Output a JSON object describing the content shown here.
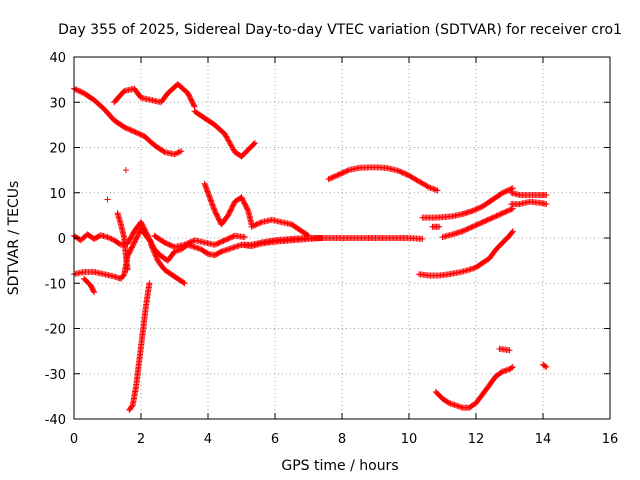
{
  "chart_data": {
    "type": "scatter",
    "title": "Day 355 of 2025, Sidereal Day-to-day VTEC variation (SDTVAR) for receiver cro1",
    "xlabel": "GPS time / hours",
    "ylabel": "SDTVAR / TECUs",
    "xlim": [
      0,
      16
    ],
    "ylim": [
      -40,
      40
    ],
    "xticks": [
      "0",
      "2",
      "4",
      "6",
      "8",
      "10",
      "12",
      "14",
      "16"
    ],
    "yticks": [
      "40",
      "30",
      "20",
      "10",
      "0",
      "-10",
      "-20",
      "-30",
      "-40"
    ],
    "grid": true,
    "marker": "plus",
    "color": "#ff0000",
    "tracks": [
      [
        [
          0.0,
          33
        ],
        [
          0.3,
          32
        ],
        [
          0.6,
          30.5
        ],
        [
          0.9,
          28.5
        ],
        [
          1.2,
          26
        ],
        [
          1.5,
          24.5
        ],
        [
          1.8,
          23.5
        ],
        [
          2.1,
          22.5
        ],
        [
          2.4,
          20.5
        ],
        [
          2.7,
          19
        ],
        [
          3.0,
          18.5
        ],
        [
          3.2,
          19.2
        ]
      ],
      [
        [
          1.2,
          30
        ],
        [
          1.5,
          32.5
        ],
        [
          1.8,
          33
        ],
        [
          2.0,
          31
        ],
        [
          2.3,
          30.5
        ],
        [
          2.6,
          30
        ],
        [
          2.8,
          32
        ],
        [
          3.1,
          34
        ],
        [
          3.4,
          32
        ],
        [
          3.6,
          29
        ]
      ],
      [
        [
          3.6,
          28
        ],
        [
          3.9,
          26.5
        ],
        [
          4.2,
          25
        ],
        [
          4.5,
          23
        ],
        [
          4.8,
          19
        ],
        [
          5.0,
          18
        ],
        [
          5.2,
          19.5
        ],
        [
          5.4,
          21
        ]
      ],
      [
        [
          0.0,
          0.5
        ],
        [
          0.2,
          -0.5
        ],
        [
          0.4,
          0.8
        ],
        [
          0.6,
          -0.2
        ],
        [
          0.8,
          0.6
        ],
        [
          1.0,
          0.2
        ],
        [
          1.2,
          -0.5
        ],
        [
          1.4,
          -1.5
        ],
        [
          1.6,
          -1.2
        ],
        [
          1.8,
          1.5
        ],
        [
          2.0,
          3.5
        ],
        [
          2.2,
          0.5
        ],
        [
          2.4,
          -2.5
        ],
        [
          2.6,
          -4
        ],
        [
          2.8,
          -5
        ],
        [
          3.0,
          -3
        ],
        [
          3.2,
          -2.5
        ],
        [
          3.4,
          -1.5
        ],
        [
          3.6,
          -2
        ],
        [
          3.8,
          -2.5
        ],
        [
          4.0,
          -3.5
        ],
        [
          4.2,
          -3.8
        ],
        [
          4.4,
          -3
        ],
        [
          4.6,
          -2.5
        ],
        [
          4.8,
          -2
        ],
        [
          5.0,
          -1.5
        ],
        [
          5.3,
          -1.5
        ],
        [
          5.6,
          -1
        ],
        [
          6.0,
          -0.5
        ],
        [
          6.5,
          -0.2
        ],
        [
          7.0,
          0
        ],
        [
          7.5,
          0
        ],
        [
          8.0,
          0
        ],
        [
          8.5,
          0
        ],
        [
          9.0,
          0
        ],
        [
          9.5,
          0
        ],
        [
          10.0,
          0
        ],
        [
          10.4,
          -0.2
        ]
      ],
      [
        [
          0.0,
          -8
        ],
        [
          0.3,
          -7.5
        ],
        [
          0.6,
          -7.5
        ],
        [
          0.9,
          -8
        ],
        [
          1.2,
          -8.5
        ],
        [
          1.4,
          -9
        ],
        [
          1.5,
          -8
        ],
        [
          1.6,
          -4
        ],
        [
          1.8,
          -1
        ],
        [
          2.0,
          2
        ],
        [
          2.2,
          0
        ],
        [
          2.3,
          -1
        ]
      ],
      [
        [
          2.3,
          -1.5
        ],
        [
          2.5,
          -5
        ],
        [
          2.7,
          -7
        ],
        [
          2.9,
          -8
        ],
        [
          3.1,
          -9
        ],
        [
          3.3,
          -10
        ]
      ],
      [
        [
          2.4,
          0.5
        ],
        [
          2.7,
          -1
        ],
        [
          3.0,
          -2
        ],
        [
          3.3,
          -1.5
        ],
        [
          3.6,
          -0.5
        ],
        [
          3.9,
          -1
        ],
        [
          4.2,
          -1.5
        ],
        [
          4.5,
          -0.5
        ],
        [
          4.8,
          0.5
        ],
        [
          5.1,
          0.2
        ]
      ],
      [
        [
          0.3,
          -9
        ],
        [
          0.5,
          -10.5
        ],
        [
          0.6,
          -12
        ]
      ],
      [
        [
          1.65,
          -38
        ],
        [
          1.75,
          -37
        ],
        [
          1.85,
          -33
        ],
        [
          1.95,
          -27
        ],
        [
          2.05,
          -21
        ],
        [
          2.15,
          -15
        ],
        [
          2.25,
          -10
        ]
      ],
      [
        [
          1.3,
          5.5
        ],
        [
          1.4,
          3
        ],
        [
          1.5,
          0
        ],
        [
          1.55,
          -4
        ],
        [
          1.6,
          -7
        ]
      ],
      [
        [
          3.9,
          12
        ],
        [
          4.0,
          10
        ],
        [
          4.1,
          8
        ],
        [
          4.2,
          6
        ],
        [
          4.4,
          3
        ],
        [
          4.6,
          5
        ],
        [
          4.8,
          8
        ],
        [
          5.0,
          9
        ],
        [
          5.2,
          6
        ],
        [
          5.3,
          3
        ]
      ],
      [
        [
          5.3,
          2.5
        ],
        [
          5.6,
          3.5
        ],
        [
          5.9,
          4
        ],
        [
          6.2,
          3.5
        ],
        [
          6.5,
          3
        ],
        [
          6.8,
          1.5
        ],
        [
          7.0,
          0.5
        ]
      ],
      [
        [
          5.0,
          -1.5
        ],
        [
          5.3,
          -1.8
        ],
        [
          5.6,
          -1.2
        ],
        [
          6.0,
          -0.8
        ],
        [
          6.5,
          -0.5
        ],
        [
          7.0,
          -0.2
        ],
        [
          7.4,
          0
        ]
      ],
      [
        [
          7.6,
          13
        ],
        [
          7.9,
          14
        ],
        [
          8.2,
          15
        ],
        [
          8.5,
          15.5
        ],
        [
          8.8,
          15.6
        ],
        [
          9.1,
          15.6
        ],
        [
          9.4,
          15.4
        ],
        [
          9.7,
          14.8
        ],
        [
          10.0,
          13.8
        ],
        [
          10.3,
          12.5
        ],
        [
          10.6,
          11.2
        ],
        [
          10.85,
          10.5
        ]
      ],
      [
        [
          10.3,
          -8
        ],
        [
          10.6,
          -8.3
        ],
        [
          10.9,
          -8.3
        ],
        [
          11.2,
          -8
        ],
        [
          11.5,
          -7.6
        ],
        [
          11.8,
          -7
        ],
        [
          12.0,
          -6.5
        ],
        [
          12.2,
          -5.5
        ],
        [
          12.4,
          -4.5
        ],
        [
          12.6,
          -2.5
        ],
        [
          12.8,
          -1
        ],
        [
          13.0,
          0.5
        ],
        [
          13.1,
          1.5
        ]
      ],
      [
        [
          10.4,
          4.5
        ],
        [
          10.7,
          4.5
        ],
        [
          11.0,
          4.6
        ],
        [
          11.3,
          4.8
        ],
        [
          11.6,
          5.3
        ],
        [
          11.9,
          6
        ],
        [
          12.2,
          7
        ],
        [
          12.5,
          8.5
        ],
        [
          12.8,
          10
        ],
        [
          13.1,
          11
        ]
      ],
      [
        [
          10.7,
          2.5
        ],
        [
          10.9,
          2.5
        ]
      ],
      [
        [
          11.0,
          0.2
        ],
        [
          11.3,
          0.8
        ],
        [
          11.6,
          1.5
        ],
        [
          11.9,
          2.5
        ],
        [
          12.2,
          3.5
        ],
        [
          12.5,
          4.5
        ],
        [
          12.8,
          5.5
        ],
        [
          13.1,
          6.5
        ]
      ],
      [
        [
          10.8,
          -34
        ],
        [
          11.0,
          -35.5
        ],
        [
          11.2,
          -36.5
        ],
        [
          11.4,
          -37
        ],
        [
          11.6,
          -37.5
        ],
        [
          11.8,
          -37.5
        ],
        [
          12.0,
          -36.5
        ],
        [
          12.2,
          -34.5
        ],
        [
          12.4,
          -32.5
        ],
        [
          12.6,
          -30.5
        ],
        [
          12.8,
          -29.5
        ],
        [
          13.0,
          -29
        ],
        [
          13.1,
          -28.5
        ]
      ],
      [
        [
          12.7,
          -24.5
        ],
        [
          13.0,
          -24.8
        ]
      ],
      [
        [
          13.05,
          10
        ],
        [
          13.3,
          9.5
        ],
        [
          13.6,
          9.5
        ],
        [
          13.9,
          9.5
        ],
        [
          14.1,
          9.5
        ]
      ],
      [
        [
          13.05,
          7.5
        ],
        [
          13.3,
          7.5
        ],
        [
          13.6,
          8
        ],
        [
          13.9,
          7.8
        ],
        [
          14.1,
          7.5
        ]
      ],
      [
        [
          14.0,
          -28
        ],
        [
          14.1,
          -28.5
        ]
      ],
      [
        [
          1.0,
          8.5
        ]
      ],
      [
        [
          1.55,
          15
        ]
      ]
    ]
  }
}
